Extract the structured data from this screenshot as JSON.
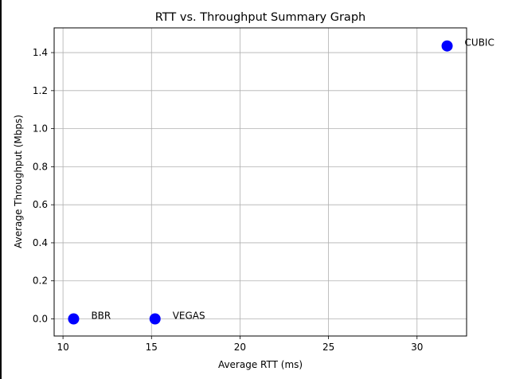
{
  "chart_data": {
    "type": "scatter",
    "title": "RTT vs. Throughput Summary Graph",
    "xlabel": "Average RTT (ms)",
    "ylabel": "Average Throughput (Mbps)",
    "xlim": [
      9.5,
      32.8
    ],
    "ylim": [
      -0.09,
      1.53
    ],
    "xticks": [
      10,
      15,
      20,
      25,
      30
    ],
    "yticks": [
      0.0,
      0.2,
      0.4,
      0.6,
      0.8,
      1.0,
      1.2,
      1.4
    ],
    "grid": true,
    "marker_color": "#0000ff",
    "points": [
      {
        "label": "BBR",
        "x": 10.6,
        "y": 0.0
      },
      {
        "label": "VEGAS",
        "x": 15.2,
        "y": 0.0
      },
      {
        "label": "CUBIC",
        "x": 31.7,
        "y": 1.435
      }
    ]
  }
}
